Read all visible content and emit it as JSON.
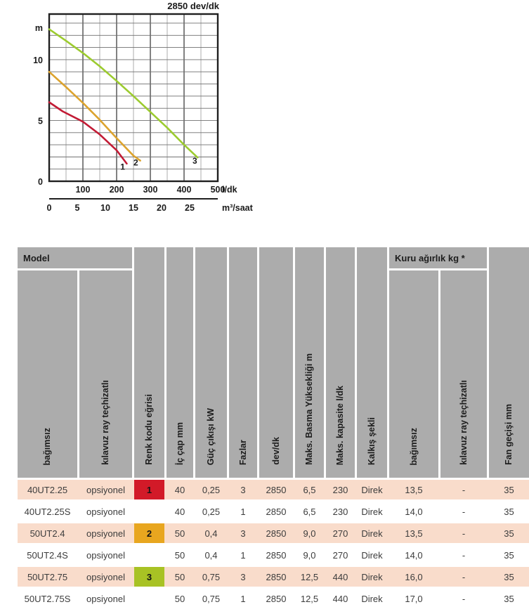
{
  "chart_data": {
    "type": "line",
    "title": "2850 dev/dk",
    "ylabel": "m",
    "y_ticks": [
      0,
      5,
      10
    ],
    "ylim": [
      0,
      13.75
    ],
    "xlim": [
      0,
      500
    ],
    "x_minor_step": 50,
    "x_unit_primary": "l/dk",
    "x_ticks_primary": [
      100,
      200,
      300,
      400,
      500
    ],
    "x_unit_secondary": "m³/saat",
    "x_ticks_secondary": [
      0,
      5,
      10,
      15,
      20,
      25
    ],
    "l_per_m3saat": 16.667,
    "grid": true,
    "legend": "curve numbers printed at line ends",
    "series": [
      {
        "label": "1",
        "color": "#C21B35",
        "points": [
          [
            0,
            6.5
          ],
          [
            40,
            5.75
          ],
          [
            100,
            4.9
          ],
          [
            150,
            3.85
          ],
          [
            200,
            2.55
          ],
          [
            230,
            1.45
          ]
        ],
        "label_at": [
          218,
          0.95
        ]
      },
      {
        "label": "2",
        "color": "#DCA32E",
        "points": [
          [
            0,
            9.0
          ],
          [
            50,
            7.75
          ],
          [
            100,
            6.45
          ],
          [
            150,
            5.05
          ],
          [
            200,
            3.55
          ],
          [
            250,
            2.1
          ],
          [
            270,
            1.7
          ]
        ],
        "label_at": [
          257,
          1.3
        ]
      },
      {
        "label": "3",
        "color": "#9CCB2F",
        "points": [
          [
            0,
            12.5
          ],
          [
            50,
            11.55
          ],
          [
            100,
            10.55
          ],
          [
            150,
            9.45
          ],
          [
            200,
            8.25
          ],
          [
            250,
            7.0
          ],
          [
            300,
            5.7
          ],
          [
            350,
            4.4
          ],
          [
            400,
            3.0
          ],
          [
            440,
            1.95
          ]
        ],
        "label_at": [
          432,
          1.45
        ]
      }
    ]
  },
  "table": {
    "group_headers": {
      "model": "Model",
      "dry_weight": "Kuru ağırlık kg *"
    },
    "columns": [
      {
        "key": "model",
        "label": "bağımsız"
      },
      {
        "key": "rail",
        "label": "kılavuz ray teçhizatlı"
      },
      {
        "key": "curve",
        "label": "Renk kodu eğrisi"
      },
      {
        "key": "bore",
        "label": "İç çap mm"
      },
      {
        "key": "power",
        "label": "Güç çıkışı kW"
      },
      {
        "key": "phases",
        "label": "Fazlar"
      },
      {
        "key": "rpm",
        "label": "dev/dk"
      },
      {
        "key": "max_head",
        "label": "Maks. Basma Yüksekliği m"
      },
      {
        "key": "max_capacity",
        "label": "Maks. kapasite l/dk"
      },
      {
        "key": "start_type",
        "label": "Kalkış şekli"
      },
      {
        "key": "weight_standalone",
        "label": "bağımsız"
      },
      {
        "key": "weight_rail",
        "label": "kılavuz ray teçhizatlı"
      },
      {
        "key": "fan_passage",
        "label": "Fan geçişi mm"
      }
    ],
    "rows": [
      {
        "model": "40UT2.25",
        "rail": "opsiyonel",
        "curve": "1",
        "curve_color": "#D21A28",
        "bore": "40",
        "power": "0,25",
        "phases": "3",
        "rpm": "2850",
        "max_head": "6,5",
        "max_capacity": "230",
        "start_type": "Direk",
        "weight_standalone": "13,5",
        "weight_rail": "-",
        "fan_passage": "35",
        "highlight": true
      },
      {
        "model": "40UT2.25S",
        "rail": "opsiyonel",
        "curve": "",
        "curve_color": "",
        "bore": "40",
        "power": "0,25",
        "phases": "1",
        "rpm": "2850",
        "max_head": "6,5",
        "max_capacity": "230",
        "start_type": "Direk",
        "weight_standalone": "14,0",
        "weight_rail": "-",
        "fan_passage": "35",
        "highlight": false
      },
      {
        "model": "50UT2.4",
        "rail": "opsiyonel",
        "curve": "2",
        "curve_color": "#E8A61F",
        "bore": "50",
        "power": "0,4",
        "phases": "3",
        "rpm": "2850",
        "max_head": "9,0",
        "max_capacity": "270",
        "start_type": "Direk",
        "weight_standalone": "13,5",
        "weight_rail": "-",
        "fan_passage": "35",
        "highlight": true
      },
      {
        "model": "50UT2.4S",
        "rail": "opsiyonel",
        "curve": "",
        "curve_color": "",
        "bore": "50",
        "power": "0,4",
        "phases": "1",
        "rpm": "2850",
        "max_head": "9,0",
        "max_capacity": "270",
        "start_type": "Direk",
        "weight_standalone": "14,0",
        "weight_rail": "-",
        "fan_passage": "35",
        "highlight": false
      },
      {
        "model": "50UT2.75",
        "rail": "opsiyonel",
        "curve": "3",
        "curve_color": "#A8C224",
        "bore": "50",
        "power": "0,75",
        "phases": "3",
        "rpm": "2850",
        "max_head": "12,5",
        "max_capacity": "440",
        "start_type": "Direk",
        "weight_standalone": "16,0",
        "weight_rail": "-",
        "fan_passage": "35",
        "highlight": true
      },
      {
        "model": "50UT2.75S",
        "rail": "opsiyonel",
        "curve": "",
        "curve_color": "",
        "bore": "50",
        "power": "0,75",
        "phases": "1",
        "rpm": "2850",
        "max_head": "12,5",
        "max_capacity": "440",
        "start_type": "Direk",
        "weight_standalone": "17,0",
        "weight_rail": "-",
        "fan_passage": "35",
        "highlight": false
      }
    ],
    "colors": {
      "header_bg": "#ACACAC",
      "row_highlight": "#F9DCCB",
      "row_plain": "#FFFFFF"
    }
  }
}
